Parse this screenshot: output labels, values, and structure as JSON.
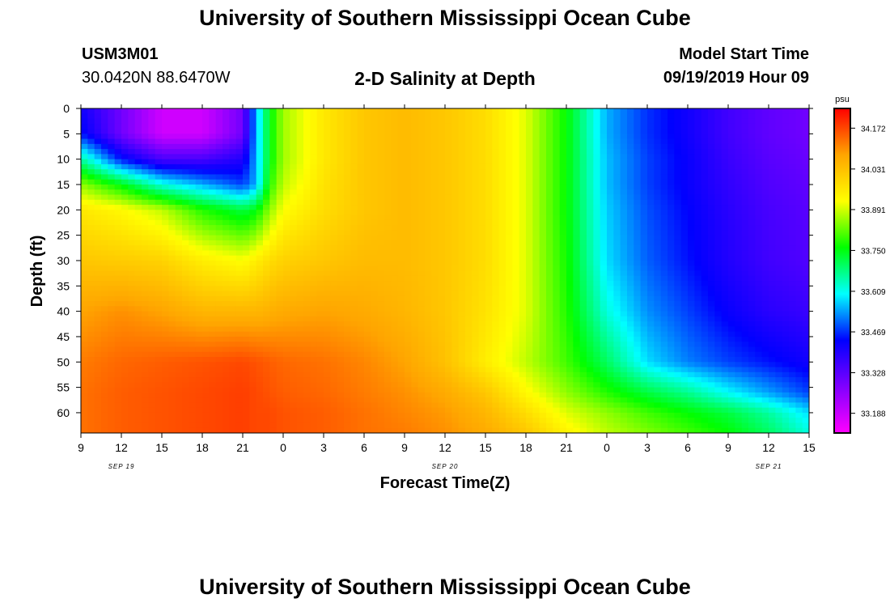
{
  "header": {
    "title": "University of Southern Mississippi Ocean Cube",
    "station_id": "USM3M01",
    "station_coords": "30.0420N 88.6470W",
    "plot_title": "2-D Salinity at Depth",
    "model_start_label": "Model Start Time",
    "model_start_value": "09/19/2019 Hour 09"
  },
  "footer": {
    "title": "University of Southern Mississippi Ocean Cube"
  },
  "colorbar": {
    "unit": "psu",
    "ticks": [
      "34.172",
      "34.031",
      "33.891",
      "33.750",
      "33.609",
      "33.469",
      "33.328",
      "33.188"
    ],
    "range": [
      33.12,
      34.24
    ],
    "colors": [
      "#ff00ff",
      "#8000ff",
      "#0000ff",
      "#00ffff",
      "#00ff00",
      "#ffff00",
      "#ffa500",
      "#ff0000"
    ]
  },
  "chart_data": {
    "type": "heatmap",
    "title": "2-D Salinity at Depth",
    "xlabel": "Forecast Time(Z)",
    "ylabel": "Depth (ft)",
    "x_tick_labels": [
      "9",
      "12",
      "15",
      "18",
      "21",
      "0",
      "3",
      "6",
      "9",
      "12",
      "15",
      "18",
      "21",
      "0",
      "3",
      "6",
      "9",
      "12",
      "15"
    ],
    "x_date_labels": [
      "SEP 19",
      "SEP 20",
      "SEP 21"
    ],
    "x_range_hours": [
      0,
      54
    ],
    "y_tick_labels": [
      "0",
      "5",
      "10",
      "15",
      "20",
      "25",
      "30",
      "35",
      "40",
      "45",
      "50",
      "55",
      "60"
    ],
    "ylim": [
      0,
      64
    ],
    "y_inverted": true,
    "value_unit": "psu",
    "vmin": 33.12,
    "vmax": 34.24,
    "columns_hours": [
      0,
      3,
      6,
      9,
      12,
      13,
      14,
      15,
      18,
      21,
      24,
      27,
      30,
      33,
      36,
      39,
      42,
      45,
      48,
      51,
      54
    ],
    "rows_depth_ft": [
      0,
      5,
      10,
      15,
      20,
      30,
      40,
      50,
      56,
      60,
      64
    ],
    "values": [
      [
        33.42,
        33.3,
        33.18,
        33.18,
        33.3,
        33.55,
        33.75,
        33.86,
        33.96,
        34.02,
        34.04,
        34.02,
        33.98,
        33.9,
        33.76,
        33.55,
        33.47,
        33.42,
        33.36,
        33.32,
        33.3
      ],
      [
        33.45,
        33.3,
        33.18,
        33.18,
        33.3,
        33.55,
        33.75,
        33.86,
        33.96,
        34.02,
        34.04,
        34.02,
        33.98,
        33.9,
        33.76,
        33.55,
        33.47,
        33.42,
        33.36,
        33.32,
        33.3
      ],
      [
        33.66,
        33.45,
        33.35,
        33.35,
        33.4,
        33.55,
        33.75,
        33.86,
        33.96,
        34.02,
        34.04,
        34.02,
        33.98,
        33.9,
        33.76,
        33.56,
        33.48,
        33.43,
        33.37,
        33.33,
        33.31
      ],
      [
        33.85,
        33.75,
        33.62,
        33.55,
        33.48,
        33.55,
        33.78,
        33.88,
        33.97,
        34.02,
        34.04,
        34.02,
        33.98,
        33.9,
        33.76,
        33.56,
        33.48,
        33.43,
        33.38,
        33.34,
        33.32
      ],
      [
        33.96,
        33.93,
        33.88,
        33.78,
        33.72,
        33.75,
        33.85,
        33.92,
        33.98,
        34.02,
        34.04,
        34.02,
        33.98,
        33.9,
        33.76,
        33.57,
        33.49,
        33.44,
        33.39,
        33.35,
        33.33
      ],
      [
        34.02,
        34.01,
        34.0,
        33.95,
        33.92,
        33.95,
        33.98,
        34.0,
        34.02,
        34.04,
        34.04,
        34.02,
        33.98,
        33.9,
        33.77,
        33.58,
        33.5,
        33.45,
        33.4,
        33.36,
        33.34
      ],
      [
        34.08,
        34.1,
        34.08,
        34.05,
        34.05,
        34.05,
        34.06,
        34.07,
        34.08,
        34.07,
        34.05,
        34.02,
        33.97,
        33.9,
        33.78,
        33.62,
        33.53,
        33.48,
        33.43,
        33.39,
        33.37
      ],
      [
        34.12,
        34.14,
        34.15,
        34.16,
        34.17,
        34.16,
        34.15,
        34.14,
        34.13,
        34.11,
        34.08,
        34.03,
        33.95,
        33.88,
        33.8,
        33.7,
        33.58,
        33.52,
        33.48,
        33.45,
        33.42
      ],
      [
        34.13,
        34.15,
        34.16,
        34.17,
        34.18,
        34.17,
        34.16,
        34.15,
        34.14,
        34.12,
        34.1,
        34.07,
        34.02,
        33.93,
        33.85,
        33.78,
        33.72,
        33.67,
        33.6,
        33.54,
        33.48
      ],
      [
        34.13,
        34.15,
        34.16,
        34.17,
        34.18,
        34.17,
        34.17,
        34.16,
        34.15,
        34.13,
        34.11,
        34.09,
        34.05,
        33.98,
        33.9,
        33.85,
        33.8,
        33.76,
        33.72,
        33.66,
        33.58
      ],
      [
        34.13,
        34.15,
        34.16,
        34.17,
        34.18,
        34.17,
        34.17,
        34.16,
        34.15,
        34.13,
        34.12,
        34.1,
        34.07,
        34.02,
        33.94,
        33.88,
        33.84,
        33.8,
        33.76,
        33.7,
        33.62
      ]
    ]
  }
}
